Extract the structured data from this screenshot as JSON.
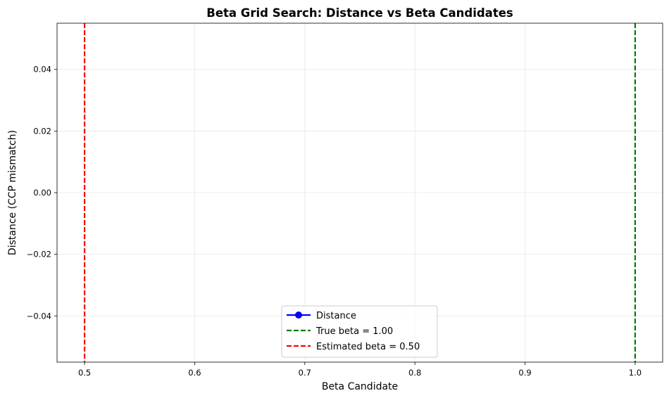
{
  "chart_data": {
    "type": "line",
    "title": "Beta Grid Search: Distance vs Beta Candidates",
    "xlabel": "Beta Candidate",
    "ylabel": "Distance (CCP mismatch)",
    "xlim": [
      0.475,
      1.025
    ],
    "ylim": [
      -0.055,
      0.055
    ],
    "x_ticks": [
      0.5,
      0.6,
      0.7,
      0.8,
      0.9,
      1.0
    ],
    "x_tick_labels": [
      "0.5",
      "0.6",
      "0.7",
      "0.8",
      "0.9",
      "1.0"
    ],
    "y_ticks": [
      -0.04,
      -0.02,
      0.0,
      0.02,
      0.04
    ],
    "y_tick_labels": [
      "−0.04",
      "−0.02",
      "0.00",
      "0.02",
      "0.04"
    ],
    "grid": true,
    "legend_position": "bottom-center",
    "series": [
      {
        "name": "Distance",
        "color": "#0000ff",
        "style": "solid-with-circle-markers",
        "x": [],
        "y": []
      }
    ],
    "vlines": [
      {
        "name": "True beta = 1.00",
        "x": 1.0,
        "color": "#008000",
        "style": "dashed"
      },
      {
        "name": "Estimated beta = 0.50",
        "x": 0.5,
        "color": "#ff0000",
        "style": "dashed"
      }
    ]
  }
}
